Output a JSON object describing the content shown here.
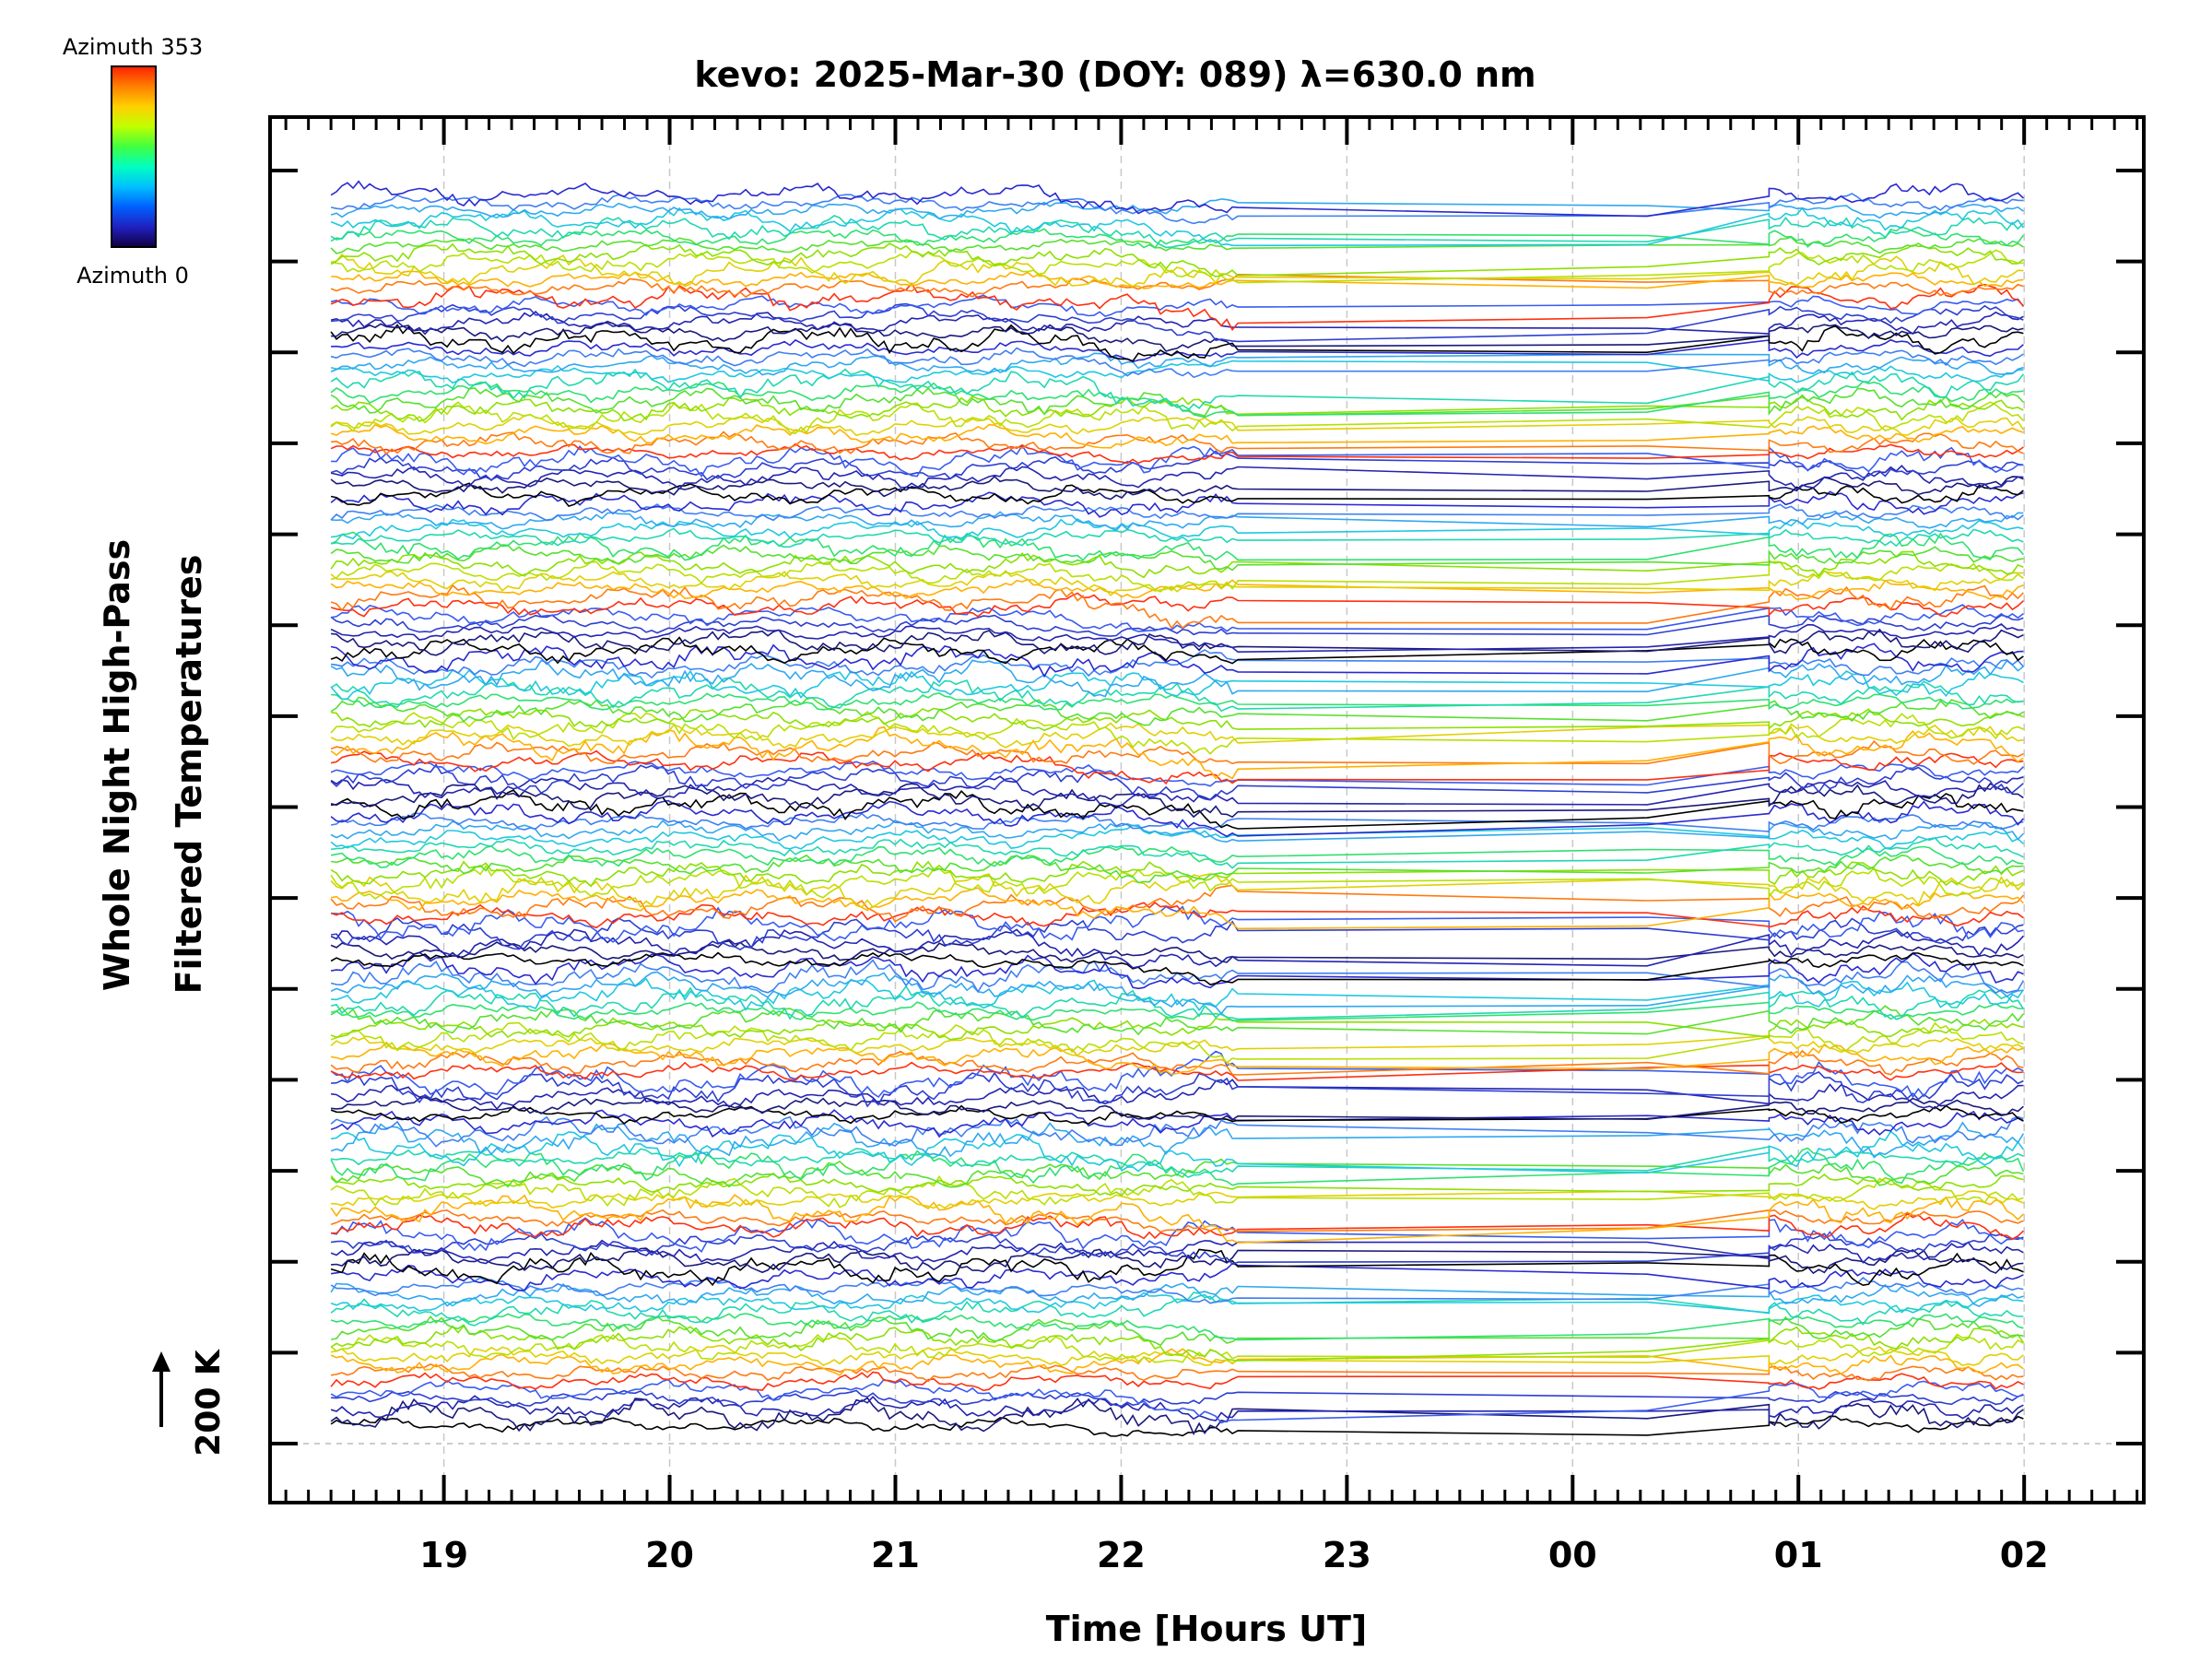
{
  "chart_data": {
    "type": "line",
    "title": "kevo: 2025-Mar-30 (DOY: 089) λ=630.0 nm",
    "xlabel": "Time [Hours UT]",
    "ylabel_line1": "Whole Night High-Pass",
    "ylabel_line2": "Filtered Temperatures",
    "scale_label": "200 K",
    "x_ticks": [
      {
        "hour": 19,
        "label": "19"
      },
      {
        "hour": 20,
        "label": "20"
      },
      {
        "hour": 21,
        "label": "21"
      },
      {
        "hour": 22,
        "label": "22"
      },
      {
        "hour": 23,
        "label": "23"
      },
      {
        "hour": 24,
        "label": "00"
      },
      {
        "hour": 25,
        "label": "01"
      },
      {
        "hour": 26,
        "label": "02"
      }
    ],
    "x_range": [
      18.23,
      26.53
    ],
    "data_start_hour": 18.5,
    "data_end_hour": 26.0,
    "gap_start_hour": 22.52,
    "gap_end_hour": 24.33,
    "resume_hour": 24.87,
    "grid": true,
    "colorbar": {
      "label_max": "Azimuth 353",
      "label_min": "Azimuth 0",
      "colors": [
        "#ff2000",
        "#ff8000",
        "#ffd000",
        "#c0ff00",
        "#40ff40",
        "#00ffc0",
        "#00c0ff",
        "#0060ff",
        "#2020c0",
        "#100040"
      ]
    },
    "series_groups": 8,
    "series_per_group": 18,
    "series_colors": [
      "#000000",
      "#1a1a7a",
      "#2424b0",
      "#2e3fd0",
      "#3a5cf0",
      "#ff3010",
      "#ff7a10",
      "#ffb000",
      "#e0d000",
      "#b8e000",
      "#8ce000",
      "#56e030",
      "#30e070",
      "#20d8b0",
      "#20c8e0",
      "#30a8f0",
      "#4080f0",
      "#2a2ad0"
    ]
  }
}
